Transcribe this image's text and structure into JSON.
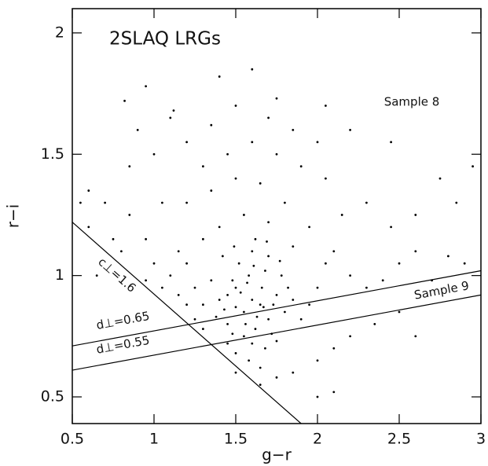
{
  "chart_data": {
    "type": "scatter",
    "title": "2SLAQ LRGs",
    "x_label": "g−r",
    "y_label": "r−i",
    "annotations": [
      "Sample 8",
      "Sample 9"
    ],
    "color": "#000000",
    "xlim": [
      0.5,
      3
    ],
    "ylim": [
      0.39,
      2.1
    ],
    "xticks": [
      0.5,
      1,
      1.5,
      2,
      2.5,
      3
    ],
    "yticks": [
      0.5,
      1,
      1.5,
      2
    ],
    "lines": [
      {
        "label": "c⊥=1.6",
        "x": [
          0.5,
          1.9
        ],
        "y": [
          1.22,
          0.39
        ]
      },
      {
        "label": "d⊥=0.65",
        "x": [
          0.5,
          3
        ],
        "y": [
          0.71,
          1.02
        ]
      },
      {
        "label": "d⊥=0.55",
        "x": [
          0.5,
          3
        ],
        "y": [
          0.61,
          0.92
        ]
      }
    ],
    "x": [
      1.55,
      1.6,
      1.65,
      1.5,
      1.7,
      1.45,
      1.58,
      1.62,
      1.75,
      1.4,
      1.52,
      1.68,
      1.8,
      1.35,
      1.48,
      1.72,
      1.6,
      1.55,
      1.85,
      1.42,
      1.66,
      1.5,
      1.78,
      1.3,
      1.62,
      1.9,
      1.45,
      1.7,
      1.56,
      1.82,
      1.25,
      1.38,
      1.95,
      1.6,
      1.68,
      1.5,
      1.75,
      1.58,
      1.65,
      1.45,
      1.2,
      1.3,
      1.4,
      1.55,
      1.7,
      1.85,
      2.0,
      2.05,
      1.15,
      1.1,
      1.05,
      1.0,
      0.95,
      0.85,
      0.8,
      0.7,
      0.6,
      0.55,
      1.2,
      1.35,
      1.5,
      1.65,
      1.8,
      1.95,
      2.1,
      2.2,
      2.3,
      2.4,
      2.5,
      2.6,
      2.7,
      2.8,
      2.9,
      2.15,
      2.3,
      2.45,
      2.6,
      2.75,
      2.85,
      2.95,
      1.3,
      1.45,
      1.6,
      1.75,
      1.9,
      2.05,
      1.2,
      1.0,
      0.85,
      0.9,
      1.1,
      1.35,
      1.5,
      1.7,
      1.85,
      2.0,
      2.2,
      2.45,
      0.95,
      1.4,
      1.6,
      1.75,
      1.12,
      0.82,
      2.05,
      1.65,
      1.75,
      1.85,
      2.0,
      2.1,
      2.2,
      2.35,
      2.5,
      2.6,
      2.1,
      2.0,
      1.5,
      1.3,
      1.25,
      1.2,
      1.15,
      0.95,
      0.75,
      0.65,
      0.6,
      1.05,
      1.48,
      1.53,
      1.63,
      1.67,
      1.57,
      1.73,
      1.43,
      1.61,
      1.49,
      1.69,
      1.77
    ],
    "values": [
      0.85,
      0.9,
      0.88,
      0.95,
      0.82,
      0.8,
      1.0,
      0.78,
      0.92,
      0.9,
      1.05,
      1.02,
      0.85,
      0.98,
      0.76,
      0.76,
      1.1,
      0.75,
      0.9,
      1.08,
      0.95,
      0.87,
      1.0,
      0.88,
      1.15,
      0.82,
      0.92,
      1.08,
      0.8,
      0.95,
      0.95,
      0.83,
      0.88,
      0.72,
      0.7,
      0.68,
      0.73,
      0.65,
      0.62,
      0.72,
      1.05,
      1.15,
      1.2,
      1.25,
      1.22,
      1.12,
      0.95,
      1.05,
      1.1,
      1.0,
      0.95,
      1.05,
      1.15,
      1.25,
      1.1,
      1.3,
      1.2,
      1.3,
      1.3,
      1.35,
      1.4,
      1.38,
      1.3,
      1.2,
      1.1,
      1.0,
      0.95,
      0.98,
      1.05,
      1.1,
      0.98,
      1.08,
      1.05,
      1.25,
      1.3,
      1.2,
      1.25,
      1.4,
      1.3,
      1.45,
      1.45,
      1.5,
      1.55,
      1.5,
      1.45,
      1.4,
      1.55,
      1.5,
      1.45,
      1.6,
      1.65,
      1.62,
      1.7,
      1.65,
      1.6,
      1.55,
      1.6,
      1.55,
      1.78,
      1.82,
      1.85,
      1.73,
      1.68,
      1.72,
      1.7,
      0.55,
      0.58,
      0.6,
      0.65,
      0.7,
      0.75,
      0.8,
      0.85,
      0.75,
      0.52,
      0.5,
      0.6,
      0.78,
      0.82,
      0.88,
      0.92,
      0.98,
      1.15,
      1.0,
      1.35,
      1.3,
      0.98,
      0.93,
      0.83,
      0.87,
      0.97,
      0.88,
      0.86,
      1.04,
      1.12,
      1.14,
      1.06
    ]
  }
}
